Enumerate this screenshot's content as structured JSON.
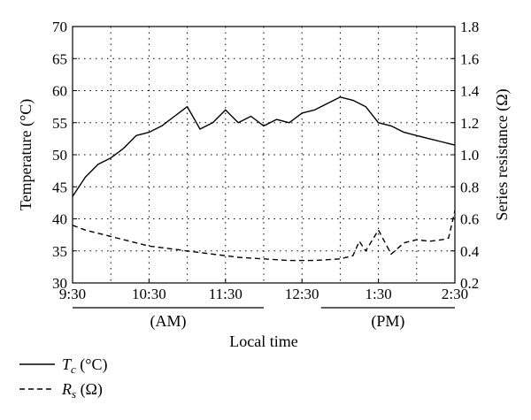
{
  "chart_data": {
    "type": "line",
    "xlabel": "Local time",
    "x_ticks": [
      "9:30",
      "10:30",
      "11:30",
      "12:30",
      "1:30",
      "2:30"
    ],
    "xlim_hours": [
      9.5,
      14.5
    ],
    "period_labels": [
      {
        "label": "(AM)",
        "range": [
          "9:30",
          "12:00"
        ]
      },
      {
        "label": "(PM)",
        "range": [
          "12:45",
          "2:30"
        ]
      }
    ],
    "y_left": {
      "label": "Temperature (°C)",
      "range": [
        30,
        70
      ],
      "ticks": [
        30,
        35,
        40,
        45,
        50,
        55,
        60,
        65,
        70
      ]
    },
    "y_right": {
      "label": "Series resistance (Ω)",
      "range": [
        0.2,
        1.8
      ],
      "ticks": [
        "0.2",
        "0.4",
        "0.6",
        "0.8",
        "1.0",
        "1.2",
        "1.4",
        "1.6",
        "1.8"
      ]
    },
    "grid": true,
    "legend": "bottom-left",
    "series": [
      {
        "name": "T_c (°C)",
        "legend_main": "T",
        "legend_sub": "c",
        "legend_unit": " (°C)",
        "axis": "left",
        "style": "solid",
        "x": [
          "9:30",
          "9:40",
          "9:50",
          "10:00",
          "10:10",
          "10:20",
          "10:30",
          "10:40",
          "10:50",
          "11:00",
          "11:10",
          "11:20",
          "11:30",
          "11:40",
          "11:50",
          "12:00",
          "12:10",
          "12:20",
          "12:30",
          "12:40",
          "12:50",
          "13:00",
          "13:10",
          "13:20",
          "13:30",
          "13:40",
          "13:50",
          "14:00",
          "14:10",
          "14:20",
          "14:30"
        ],
        "y": [
          43.5,
          46.5,
          48.5,
          49.5,
          51,
          53,
          53.5,
          54.5,
          56,
          57.5,
          54,
          55,
          57,
          55,
          56,
          54.5,
          55.5,
          55,
          56.5,
          57,
          58,
          59,
          58.5,
          57.5,
          55,
          54.5,
          53.5,
          53,
          52.5,
          52,
          51.5
        ]
      },
      {
        "name": "R_s (Ω)",
        "legend_main": "R",
        "legend_sub": "s",
        "legend_unit": " (Ω)",
        "axis": "right",
        "style": "dashed",
        "x": [
          "9:30",
          "9:40",
          "9:50",
          "10:00",
          "10:10",
          "10:20",
          "10:30",
          "10:40",
          "10:50",
          "11:00",
          "11:10",
          "11:20",
          "11:30",
          "11:40",
          "11:50",
          "12:00",
          "12:10",
          "12:20",
          "12:30",
          "12:40",
          "12:50",
          "13:00",
          "13:10",
          "13:15",
          "13:20",
          "13:30",
          "13:40",
          "13:50",
          "14:00",
          "14:10",
          "14:20",
          "14:25",
          "14:30"
        ],
        "y": [
          0.56,
          0.53,
          0.51,
          0.49,
          0.47,
          0.45,
          0.43,
          0.42,
          0.41,
          0.4,
          0.39,
          0.38,
          0.37,
          0.36,
          0.355,
          0.35,
          0.345,
          0.34,
          0.34,
          0.34,
          0.345,
          0.35,
          0.37,
          0.46,
          0.4,
          0.53,
          0.38,
          0.45,
          0.47,
          0.46,
          0.47,
          0.48,
          0.65
        ]
      }
    ]
  }
}
